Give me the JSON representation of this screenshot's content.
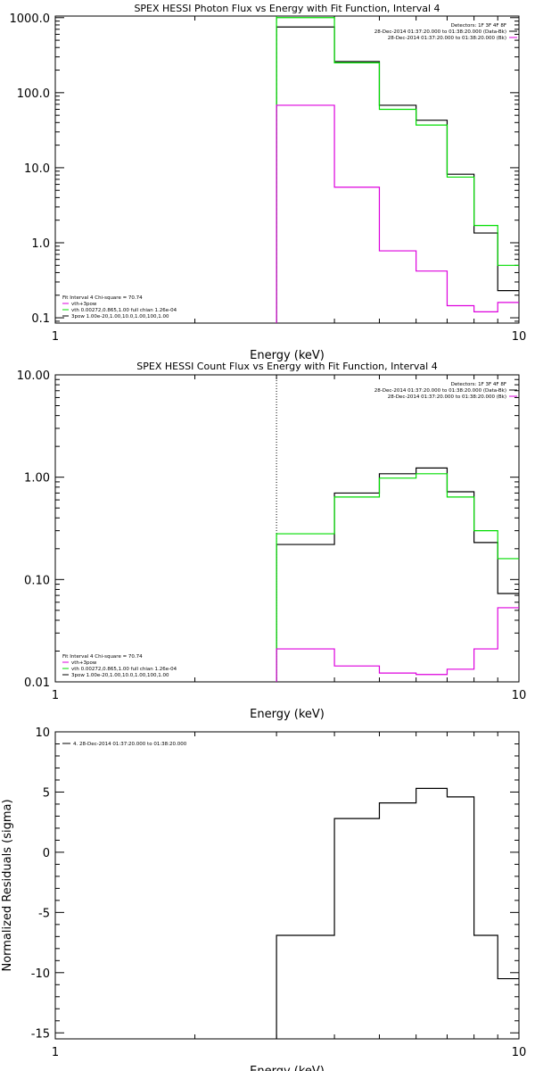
{
  "colors": {
    "black": "#000000",
    "green": "#00dd00",
    "magenta": "#dd00dd"
  },
  "chart_data": [
    {
      "id": "photon",
      "type": "line",
      "title": "SPEX HESSI Photon Flux vs Energy with Fit Function, Interval 4",
      "xlabel": "Energy (keV)",
      "ylabel": "",
      "xscale": "log",
      "yscale": "log",
      "xlim": [
        1,
        10
      ],
      "ylim": [
        0.085,
        1050
      ],
      "xticks": [
        {
          "v": 1,
          "label": "1"
        },
        {
          "v": 10,
          "label": "10"
        }
      ],
      "yticks": [
        {
          "v": 0.1,
          "label": "0.1"
        },
        {
          "v": 1,
          "label": "1.0"
        },
        {
          "v": 10,
          "label": "10.0"
        },
        {
          "v": 100,
          "label": "100.0"
        },
        {
          "v": 1000,
          "label": "1000.0"
        }
      ],
      "vline": {
        "x": 3.0,
        "style": "dashed-green"
      },
      "edges": [
        3.0,
        4.0,
        5.0,
        6.0,
        7.0,
        8.0,
        9.0,
        10.0
      ],
      "series": [
        {
          "color": "black",
          "values": [
            750,
            260,
            68,
            43,
            8.2,
            1.35,
            0.23
          ]
        },
        {
          "color": "green",
          "values": [
            1000,
            250,
            60,
            37,
            7.5,
            1.7,
            0.5
          ]
        },
        {
          "color": "magenta",
          "values": [
            68,
            5.5,
            0.78,
            0.42,
            0.145,
            0.12,
            0.16
          ]
        }
      ],
      "legend_tr": [
        {
          "text": "Detectors: 1F 3F 4F 8F",
          "color": ""
        },
        {
          "text": "28-Dec-2014 01:37:20.000 to 01:38:20.000 (Data-Bk)",
          "color": "black"
        },
        {
          "text": "28-Dec-2014 01:37:20.000 to 01:38:20.000 (Bk)",
          "color": "magenta"
        }
      ],
      "legend_bl": [
        {
          "text": "Fit Interval 4   Chi-square = 70.74",
          "color": ""
        },
        {
          "text": "vth+3pow",
          "color": "magenta"
        },
        {
          "text": "vth 0.00272,0.865,1.00  full chian 1.26e-04",
          "color": "green"
        },
        {
          "text": "3pow 1.00e-20,1.00,10.0,1.00,100,1.00",
          "color": "black"
        }
      ]
    },
    {
      "id": "count",
      "type": "line",
      "title": "SPEX HESSI Count Flux vs Energy with Fit Function, Interval 4",
      "xlabel": "Energy (keV)",
      "ylabel": "",
      "xscale": "log",
      "yscale": "log",
      "xlim": [
        1,
        10
      ],
      "ylim": [
        0.01,
        10
      ],
      "xticks": [
        {
          "v": 1,
          "label": "1"
        },
        {
          "v": 10,
          "label": "10"
        }
      ],
      "yticks": [
        {
          "v": 0.01,
          "label": "0.01"
        },
        {
          "v": 0.1,
          "label": "0.10"
        },
        {
          "v": 1,
          "label": "1.00"
        },
        {
          "v": 10,
          "label": "10.00"
        }
      ],
      "vline": {
        "x": 3.0,
        "style": "dotted-black"
      },
      "edges": [
        3.0,
        4.0,
        5.0,
        6.0,
        7.0,
        8.0,
        9.0,
        10.0
      ],
      "series": [
        {
          "color": "black",
          "values": [
            0.22,
            0.7,
            1.08,
            1.23,
            0.72,
            0.23,
            0.073
          ]
        },
        {
          "color": "green",
          "values": [
            0.28,
            0.64,
            0.98,
            1.08,
            0.64,
            0.3,
            0.16
          ]
        },
        {
          "color": "magenta",
          "values": [
            0.021,
            0.0143,
            0.0122,
            0.0118,
            0.0133,
            0.021,
            0.053
          ]
        }
      ],
      "legend_tr": [
        {
          "text": "Detectors: 1F 3F 4F 8F",
          "color": ""
        },
        {
          "text": "28-Dec-2014 01:37:20.000 to 01:38:20.000 (Data-Bk)",
          "color": "black"
        },
        {
          "text": "28-Dec-2014 01:37:20.000 to 01:38:20.000 (Bk)",
          "color": "magenta"
        }
      ],
      "legend_bl": [
        {
          "text": "Fit Interval 4   Chi-square = 70.74",
          "color": ""
        },
        {
          "text": "vth+3pow",
          "color": "magenta"
        },
        {
          "text": "vth 0.00272,0.865,1.00  full chian 1.26e-04",
          "color": "green"
        },
        {
          "text": "3pow 1.00e-20,1.00,10.0,1.00,100,1.00",
          "color": "black"
        }
      ]
    },
    {
      "id": "residuals",
      "type": "line",
      "title": "",
      "xlabel": "Energy (keV)",
      "ylabel": "Normalized Residuals (sigma)",
      "xscale": "log",
      "yscale": "linear",
      "xlim": [
        1,
        10
      ],
      "ylim": [
        -15.5,
        10
      ],
      "xticks": [
        {
          "v": 1,
          "label": "1"
        },
        {
          "v": 10,
          "label": "10"
        }
      ],
      "yticks": [
        {
          "v": -15,
          "label": "-15"
        },
        {
          "v": -10,
          "label": "-10"
        },
        {
          "v": -5,
          "label": "-5"
        },
        {
          "v": 0,
          "label": "0"
        },
        {
          "v": 5,
          "label": "5"
        },
        {
          "v": 10,
          "label": "10"
        }
      ],
      "edges": [
        3.0,
        4.0,
        5.0,
        6.0,
        7.0,
        8.0,
        9.0,
        10.0
      ],
      "series": [
        {
          "color": "black",
          "values": [
            -6.9,
            2.8,
            4.1,
            5.3,
            4.6,
            -6.9,
            -10.5
          ]
        }
      ],
      "legend_tr": [],
      "legend_bl": [],
      "legend_tl": [
        {
          "text": "4. 28-Dec-2014 01:37:20.000 to 01:38:20.000",
          "color": "black"
        }
      ]
    }
  ]
}
